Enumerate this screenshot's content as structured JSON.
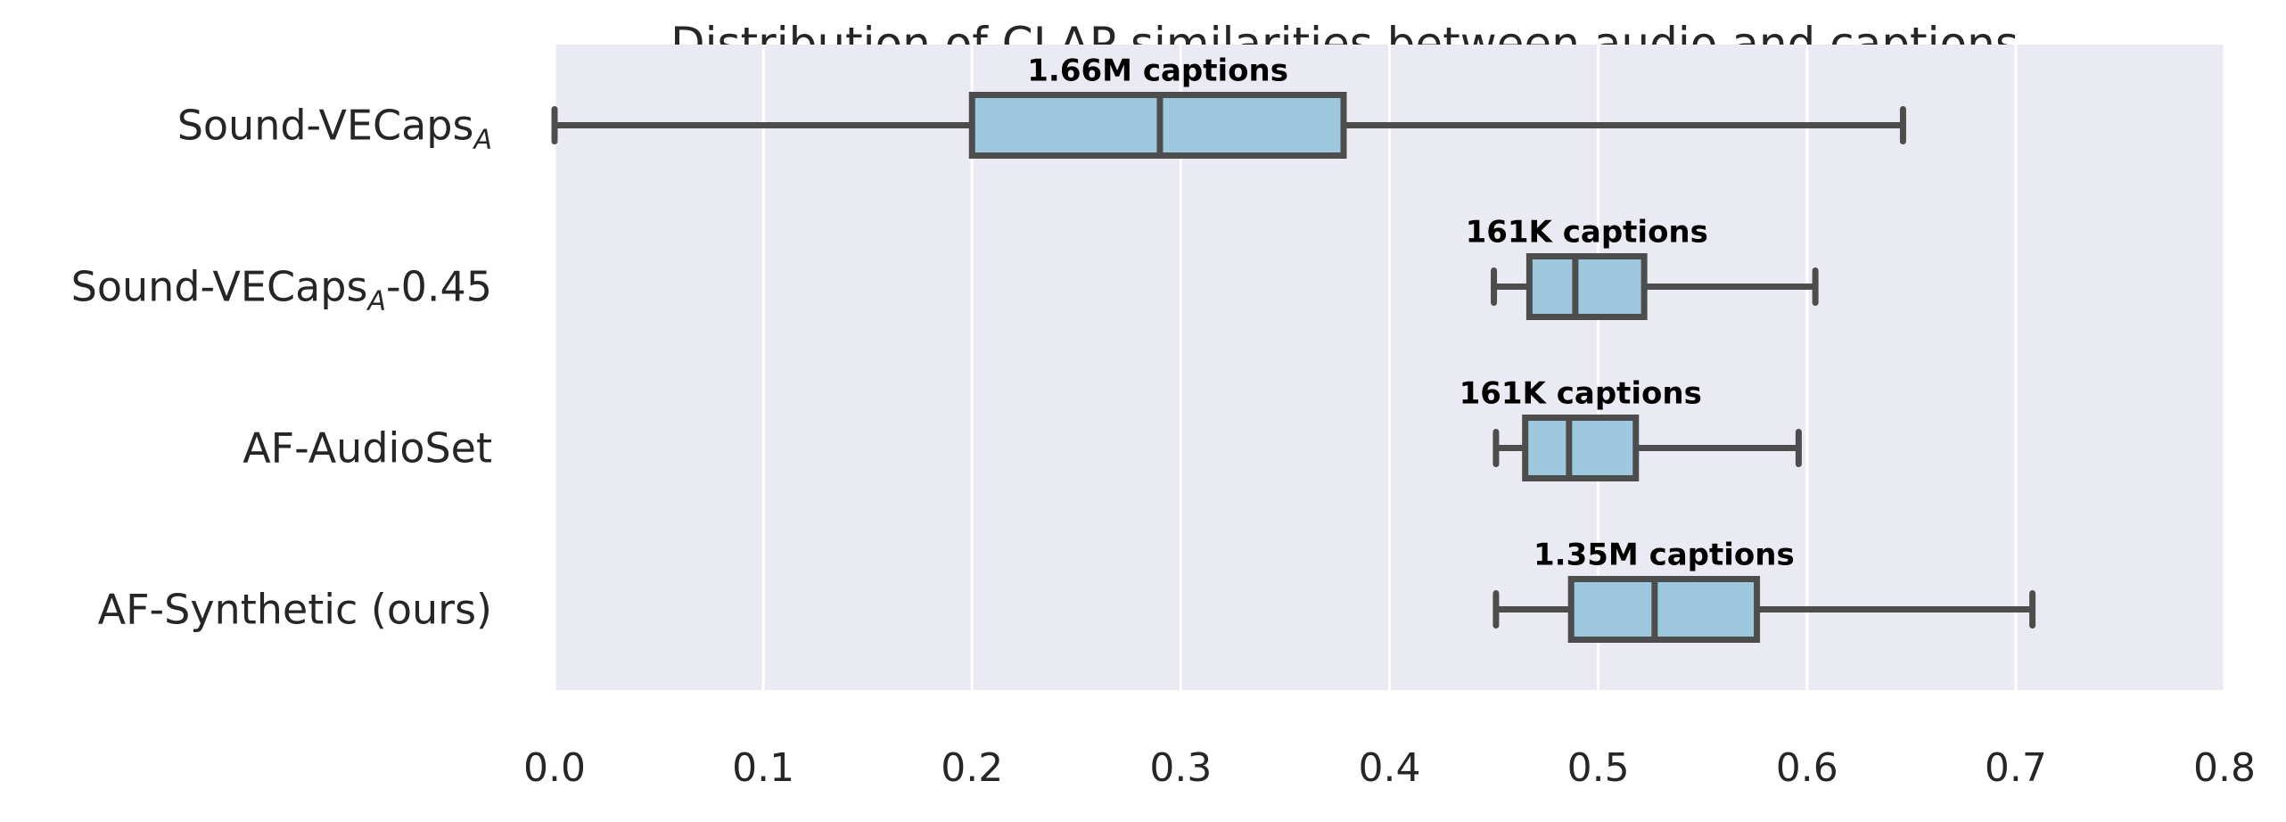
{
  "chart_data": {
    "type": "boxplot",
    "orientation": "horizontal",
    "title": "Distribution of CLAP similarities between audio and captions",
    "xlabel": "",
    "ylabel": "",
    "xlim": [
      0.0,
      0.8
    ],
    "xticks": [
      0.0,
      0.1,
      0.2,
      0.3,
      0.4,
      0.5,
      0.6,
      0.7,
      0.8
    ],
    "xtick_labels": [
      "0.0",
      "0.1",
      "0.2",
      "0.3",
      "0.4",
      "0.5",
      "0.6",
      "0.7",
      "0.8"
    ],
    "grid": true,
    "grid_axis": "x",
    "legend": "none",
    "colors": {
      "box_fill": "#9ec8de",
      "box_edge": "#4d4d4d",
      "plot_bg": "#eaeaf2",
      "grid": "#ffffff"
    },
    "series": [
      {
        "label": "Sound-VECaps",
        "label_subscript": "A",
        "label_suffix": "",
        "annotation": "1.66M captions",
        "whisker_low": 0.0,
        "q1": 0.2,
        "median": 0.29,
        "q3": 0.378,
        "whisker_high": 0.646
      },
      {
        "label": "Sound-VECaps",
        "label_subscript": "A",
        "label_suffix": "-0.45",
        "annotation": "161K captions",
        "whisker_low": 0.45,
        "q1": 0.467,
        "median": 0.489,
        "q3": 0.522,
        "whisker_high": 0.604
      },
      {
        "label": "AF-AudioSet",
        "label_subscript": "",
        "label_suffix": "",
        "annotation": "161K captions",
        "whisker_low": 0.451,
        "q1": 0.465,
        "median": 0.486,
        "q3": 0.518,
        "whisker_high": 0.596
      },
      {
        "label": "AF-Synthetic (ours)",
        "label_subscript": "",
        "label_suffix": "",
        "annotation": "1.35M captions",
        "whisker_low": 0.451,
        "q1": 0.487,
        "median": 0.527,
        "q3": 0.576,
        "whisker_high": 0.708
      }
    ]
  }
}
